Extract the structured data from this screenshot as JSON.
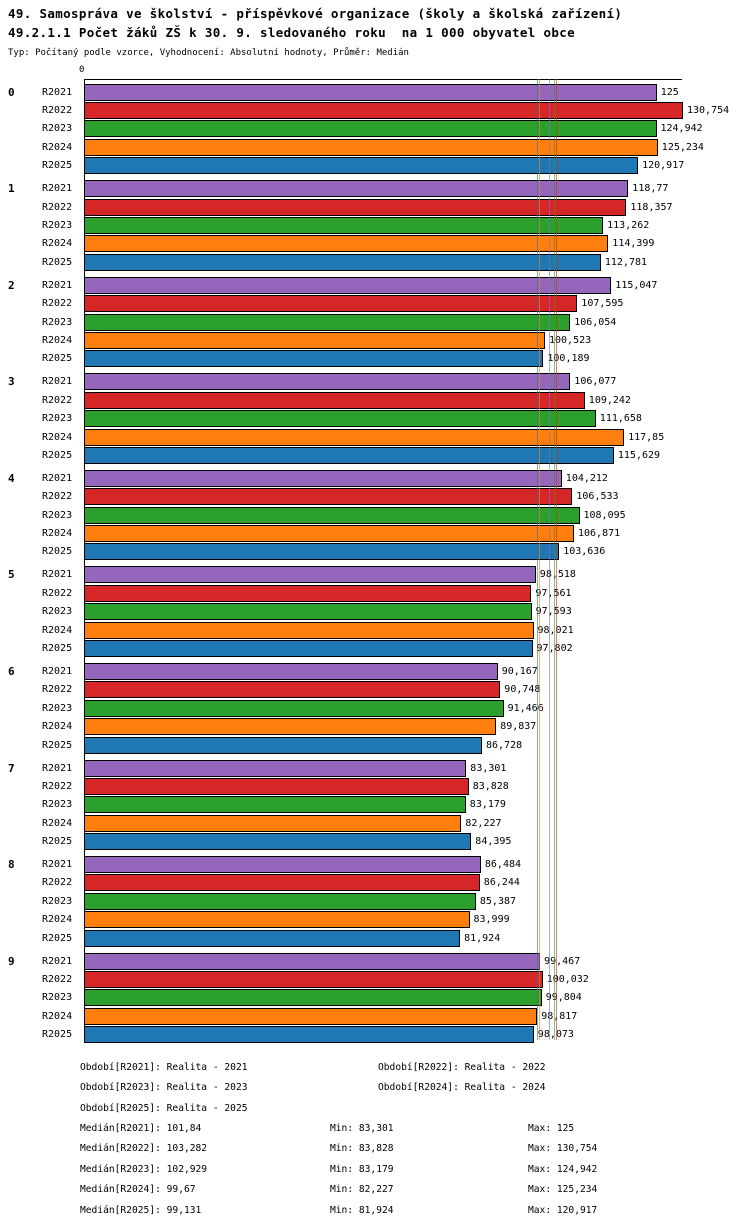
{
  "title": "49. Samospráva ve školství - příspěvkové organizace (školy a školská zařízení)",
  "subtitle": "49.2.1.1 Počet žáků ZŠ k 30. 9. sledovaného roku  na 1 000 obyvatel obce",
  "meta": "Typ: Počítaný podle vzorce, Vyhodnocení: Absolutní hodnoty, Průměr: Medián",
  "axis": {
    "zero_label": "0"
  },
  "chart_data": {
    "type": "bar",
    "orientation": "horizontal",
    "title": "49.2.1.1 Počet žáků ZŠ k 30. 9. sledovaného roku  na 1 000 obyvatel obce",
    "xlabel": "",
    "ylabel": "",
    "xlim": [
      0,
      130.754
    ],
    "grid": false,
    "legend_position": "none",
    "categories": [
      "0",
      "1",
      "2",
      "3",
      "4",
      "5",
      "6",
      "7",
      "8",
      "9"
    ],
    "series": [
      {
        "name": "R2021",
        "color": "#9467bd",
        "values": [
          125,
          118.77,
          115.047,
          106.077,
          104.212,
          98.518,
          90.167,
          83.301,
          86.484,
          99.467
        ],
        "labels": [
          "125",
          "118,77",
          "115,047",
          "106,077",
          "104,212",
          "98,518",
          "90,167",
          "83,301",
          "86,484",
          "99,467"
        ]
      },
      {
        "name": "R2022",
        "color": "#d62728",
        "values": [
          130.754,
          118.357,
          107.595,
          109.242,
          106.533,
          97.561,
          90.748,
          83.828,
          86.244,
          100.032
        ],
        "labels": [
          "130,754",
          "118,357",
          "107,595",
          "109,242",
          "106,533",
          "97,561",
          "90,748",
          "83,828",
          "86,244",
          "100,032"
        ]
      },
      {
        "name": "R2023",
        "color": "#2ca02c",
        "values": [
          124.942,
          113.262,
          106.054,
          111.658,
          108.095,
          97.593,
          91.466,
          83.179,
          85.387,
          99.804
        ],
        "labels": [
          "124,942",
          "113,262",
          "106,054",
          "111,658",
          "108,095",
          "97,593",
          "91,466",
          "83,179",
          "85,387",
          "99,804"
        ]
      },
      {
        "name": "R2024",
        "color": "#ff7f0e",
        "values": [
          125.234,
          114.399,
          100.523,
          117.85,
          106.871,
          98.021,
          89.837,
          82.227,
          83.999,
          98.817
        ],
        "labels": [
          "125,234",
          "114,399",
          "100,523",
          "117,85",
          "106,871",
          "98,021",
          "89,837",
          "82,227",
          "83,999",
          "98,817"
        ]
      },
      {
        "name": "R2025",
        "color": "#1f77b4",
        "values": [
          120.917,
          112.781,
          100.189,
          115.629,
          103.636,
          97.802,
          86.728,
          84.395,
          81.924,
          98.073
        ],
        "labels": [
          "120,917",
          "112,781",
          "100,189",
          "115,629",
          "103,636",
          "97,802",
          "86,728",
          "84,395",
          "81,924",
          "98,073"
        ]
      }
    ],
    "medians": [
      {
        "name": "R2021",
        "value": 101.84,
        "label": "101,84",
        "color": "#9467bd"
      },
      {
        "name": "R2022",
        "value": 103.282,
        "label": "103,282",
        "color": "#d62728"
      },
      {
        "name": "R2023",
        "value": 102.929,
        "label": "102,929",
        "color": "#2ca02c"
      },
      {
        "name": "R2024",
        "value": 99.67,
        "label": "99,67",
        "color": "#ff7f0e"
      },
      {
        "name": "R2025",
        "value": 99.131,
        "label": "99,131",
        "color": "#1f77b4"
      }
    ]
  },
  "footer": {
    "periods": [
      {
        "left": "Období[R2021]: Realita - 2021",
        "right": "Období[R2022]: Realita - 2022"
      },
      {
        "left": "Období[R2023]: Realita - 2023",
        "right": "Období[R2024]: Realita - 2024"
      },
      {
        "left": "Období[R2025]: Realita - 2025",
        "right": ""
      }
    ],
    "stats": [
      {
        "median": "Medián[R2021]: 101,84",
        "min": "Min: 83,301",
        "max": "Max: 125"
      },
      {
        "median": "Medián[R2022]: 103,282",
        "min": "Min: 83,828",
        "max": "Max: 130,754"
      },
      {
        "median": "Medián[R2023]: 102,929",
        "min": "Min: 83,179",
        "max": "Max: 124,942"
      },
      {
        "median": "Medián[R2024]: 99,67",
        "min": "Min: 82,227",
        "max": "Max: 125,234"
      },
      {
        "median": "Medián[R2025]: 99,131",
        "min": "Min: 81,924",
        "max": "Max: 120,917"
      }
    ]
  }
}
